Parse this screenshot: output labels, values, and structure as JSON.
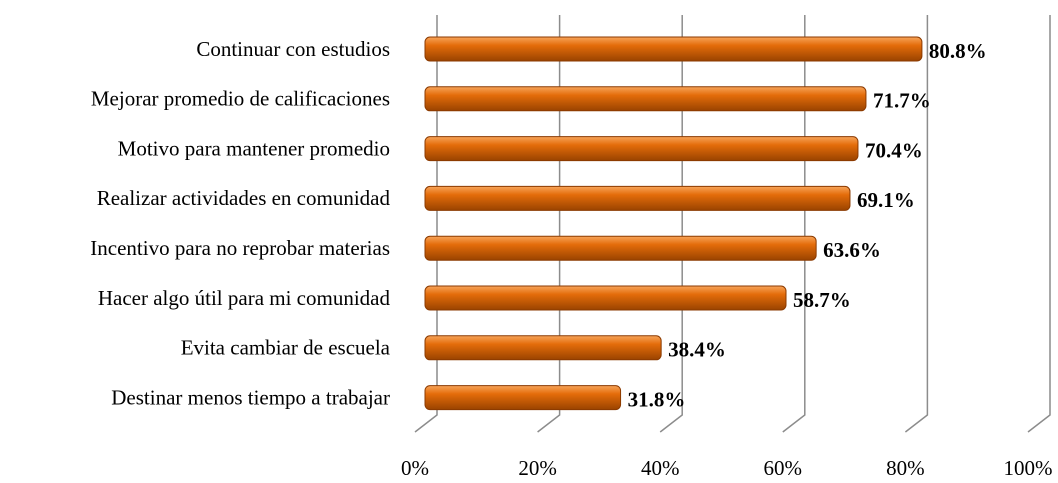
{
  "chart_data": {
    "type": "bar",
    "orientation": "horizontal",
    "categories": [
      "Continuar con estudios",
      "Mejorar promedio de calificaciones",
      "Motivo para mantener promedio",
      "Realizar actividades en comunidad",
      "Incentivo para no reprobar materias",
      "Hacer algo útil para mi comunidad",
      "Evita cambiar de escuela",
      "Destinar menos tiempo a trabajar"
    ],
    "values": [
      80.8,
      71.7,
      70.4,
      69.1,
      63.6,
      58.7,
      38.4,
      31.8
    ],
    "value_labels": [
      "80.8%",
      "71.7%",
      "70.4%",
      "69.1%",
      "63.6%",
      "58.7%",
      "38.4%",
      "31.8%"
    ],
    "color": "#e46c0a",
    "xlim": [
      0,
      100
    ],
    "xticks": [
      {
        "value": 0,
        "label": "0%"
      },
      {
        "value": 20,
        "label": "20%"
      },
      {
        "value": 40,
        "label": "40%"
      },
      {
        "value": 60,
        "label": "60%"
      },
      {
        "value": 80,
        "label": "80%"
      },
      {
        "value": 100,
        "label": "100%"
      }
    ],
    "grid": true
  }
}
